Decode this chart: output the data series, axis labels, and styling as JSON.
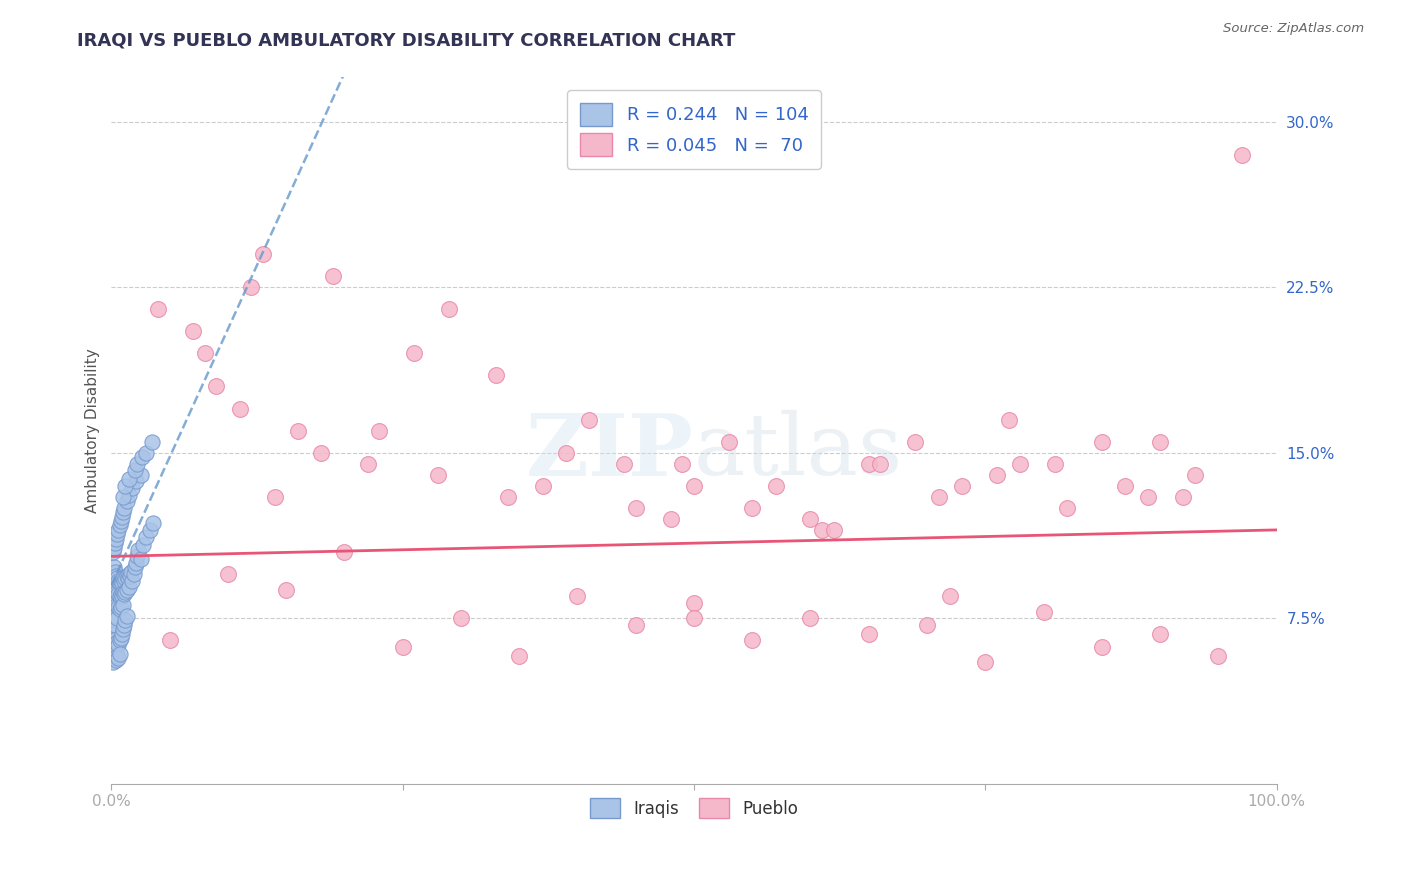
{
  "title": "IRAQI VS PUEBLO AMBULATORY DISABILITY CORRELATION CHART",
  "source": "Source: ZipAtlas.com",
  "ylabel": "Ambulatory Disability",
  "xlim": [
    0.0,
    1.0
  ],
  "ylim": [
    0.0,
    0.32
  ],
  "xticks": [
    0.0,
    1.0
  ],
  "xticklabels": [
    "0.0%",
    "100.0%"
  ],
  "yticks": [
    0.075,
    0.15,
    0.225,
    0.3
  ],
  "yticklabels": [
    "7.5%",
    "15.0%",
    "22.5%",
    "30.0%"
  ],
  "grid_color": "#cccccc",
  "background_color": "#ffffff",
  "iraqi_color": "#aac4e8",
  "pueblo_color": "#f5b8cb",
  "iraqi_edge": "#7799cc",
  "pueblo_edge": "#e888aa",
  "trend_iraqi_color": "#6699cc",
  "trend_pueblo_color": "#e85577",
  "legend_label_iraqi": "Iraqis",
  "legend_label_pueblo": "Pueblo",
  "title_color": "#333355",
  "tick_color": "#3366cc",
  "source_color": "#666666",
  "iraqi_x": [
    0.001,
    0.001,
    0.001,
    0.001,
    0.001,
    0.002,
    0.002,
    0.002,
    0.002,
    0.002,
    0.002,
    0.003,
    0.003,
    0.003,
    0.003,
    0.003,
    0.004,
    0.004,
    0.004,
    0.004,
    0.005,
    0.005,
    0.005,
    0.005,
    0.006,
    0.006,
    0.006,
    0.007,
    0.007,
    0.007,
    0.008,
    0.008,
    0.008,
    0.009,
    0.009,
    0.01,
    0.01,
    0.01,
    0.011,
    0.011,
    0.012,
    0.012,
    0.013,
    0.013,
    0.014,
    0.015,
    0.015,
    0.016,
    0.017,
    0.018,
    0.019,
    0.02,
    0.021,
    0.022,
    0.023,
    0.025,
    0.027,
    0.03,
    0.033,
    0.036,
    0.001,
    0.001,
    0.002,
    0.002,
    0.003,
    0.003,
    0.004,
    0.004,
    0.005,
    0.005,
    0.006,
    0.006,
    0.007,
    0.007,
    0.008,
    0.009,
    0.01,
    0.011,
    0.012,
    0.013,
    0.001,
    0.002,
    0.003,
    0.004,
    0.005,
    0.006,
    0.007,
    0.008,
    0.009,
    0.01,
    0.011,
    0.013,
    0.015,
    0.018,
    0.021,
    0.025,
    0.01,
    0.012,
    0.015,
    0.02,
    0.022,
    0.026,
    0.03,
    0.035
  ],
  "iraqi_y": [
    0.095,
    0.088,
    0.082,
    0.076,
    0.07,
    0.098,
    0.092,
    0.086,
    0.08,
    0.074,
    0.068,
    0.096,
    0.09,
    0.084,
    0.078,
    0.072,
    0.094,
    0.088,
    0.082,
    0.076,
    0.093,
    0.087,
    0.081,
    0.075,
    0.092,
    0.086,
    0.08,
    0.091,
    0.085,
    0.079,
    0.092,
    0.086,
    0.08,
    0.091,
    0.085,
    0.093,
    0.087,
    0.081,
    0.092,
    0.086,
    0.093,
    0.087,
    0.094,
    0.088,
    0.093,
    0.095,
    0.089,
    0.094,
    0.096,
    0.092,
    0.095,
    0.098,
    0.1,
    0.103,
    0.106,
    0.102,
    0.108,
    0.112,
    0.115,
    0.118,
    0.06,
    0.055,
    0.065,
    0.058,
    0.063,
    0.057,
    0.062,
    0.056,
    0.064,
    0.058,
    0.063,
    0.057,
    0.065,
    0.059,
    0.066,
    0.068,
    0.07,
    0.072,
    0.074,
    0.076,
    0.105,
    0.107,
    0.109,
    0.111,
    0.113,
    0.115,
    0.117,
    0.119,
    0.121,
    0.123,
    0.125,
    0.128,
    0.131,
    0.134,
    0.137,
    0.14,
    0.13,
    0.135,
    0.138,
    0.142,
    0.145,
    0.148,
    0.15,
    0.155
  ],
  "pueblo_x": [
    0.04,
    0.07,
    0.09,
    0.11,
    0.13,
    0.08,
    0.12,
    0.16,
    0.19,
    0.22,
    0.26,
    0.29,
    0.33,
    0.37,
    0.41,
    0.45,
    0.49,
    0.53,
    0.57,
    0.61,
    0.65,
    0.69,
    0.73,
    0.77,
    0.81,
    0.85,
    0.89,
    0.93,
    0.97,
    0.14,
    0.18,
    0.23,
    0.28,
    0.34,
    0.39,
    0.44,
    0.5,
    0.55,
    0.6,
    0.66,
    0.71,
    0.76,
    0.82,
    0.87,
    0.92,
    0.1,
    0.2,
    0.3,
    0.4,
    0.5,
    0.6,
    0.7,
    0.8,
    0.9,
    0.15,
    0.25,
    0.35,
    0.45,
    0.55,
    0.65,
    0.75,
    0.85,
    0.95,
    0.05,
    0.48,
    0.62,
    0.78,
    0.9,
    0.5,
    0.72
  ],
  "pueblo_y": [
    0.215,
    0.205,
    0.18,
    0.17,
    0.24,
    0.195,
    0.225,
    0.16,
    0.23,
    0.145,
    0.195,
    0.215,
    0.185,
    0.135,
    0.165,
    0.125,
    0.145,
    0.155,
    0.135,
    0.115,
    0.145,
    0.155,
    0.135,
    0.165,
    0.145,
    0.155,
    0.13,
    0.14,
    0.285,
    0.13,
    0.15,
    0.16,
    0.14,
    0.13,
    0.15,
    0.145,
    0.135,
    0.125,
    0.12,
    0.145,
    0.13,
    0.14,
    0.125,
    0.135,
    0.13,
    0.095,
    0.105,
    0.075,
    0.085,
    0.082,
    0.075,
    0.072,
    0.078,
    0.068,
    0.088,
    0.062,
    0.058,
    0.072,
    0.065,
    0.068,
    0.055,
    0.062,
    0.058,
    0.065,
    0.12,
    0.115,
    0.145,
    0.155,
    0.075,
    0.085
  ],
  "trend_iraqi_x0": 0.0,
  "trend_iraqi_x1": 0.05,
  "trend_iraqi_y0": 0.09,
  "trend_iraqi_y1": 0.148,
  "trend_pueblo_x0": 0.0,
  "trend_pueblo_x1": 1.0,
  "trend_pueblo_y0": 0.103,
  "trend_pueblo_y1": 0.115
}
